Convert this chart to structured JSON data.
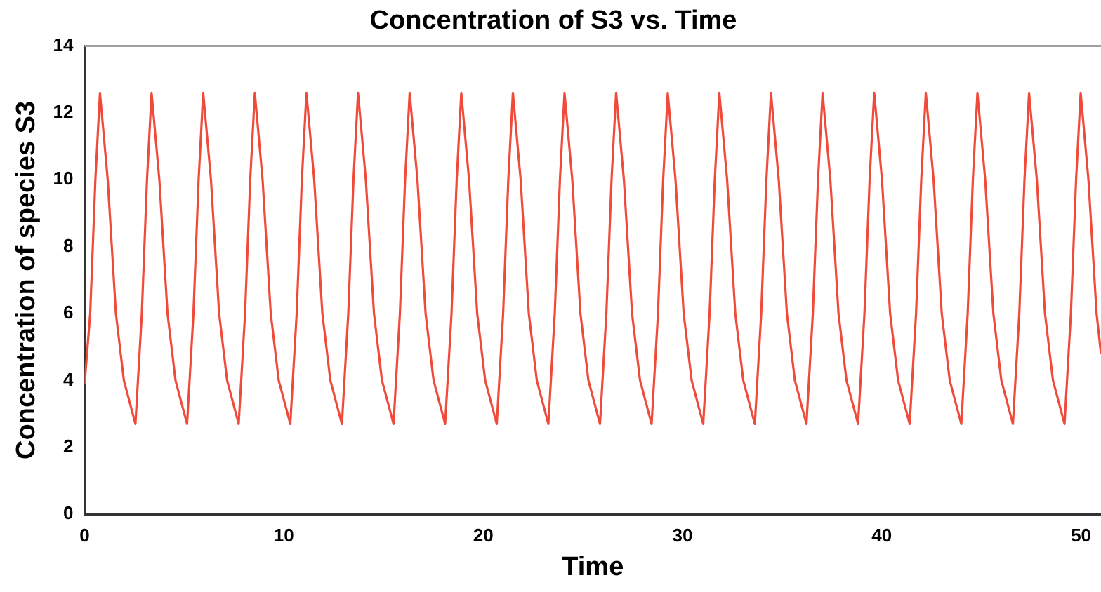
{
  "chart_data": {
    "type": "line",
    "title": "Concentration of S3 vs. Time",
    "xlabel": "Time",
    "ylabel": "Concentration of species S3",
    "x": [
      0,
      0.28,
      0.54,
      0.77,
      1.16,
      1.57,
      1.97,
      2.55,
      2.87,
      3.13,
      3.36,
      3.75,
      4.16,
      4.56,
      5.14,
      5.46,
      5.72,
      5.95,
      6.34,
      6.75,
      7.15,
      7.73,
      8.05,
      8.31,
      8.54,
      8.93,
      9.34,
      9.74,
      10.32,
      10.64,
      10.9,
      11.13,
      11.52,
      11.93,
      12.33,
      12.91,
      13.23,
      13.49,
      13.72,
      14.11,
      14.52,
      14.92,
      15.5,
      15.82,
      16.08,
      16.31,
      16.7,
      17.11,
      17.51,
      18.09,
      18.41,
      18.67,
      18.9,
      19.29,
      19.7,
      20.1,
      20.68,
      21,
      21.26,
      21.49,
      21.88,
      22.29,
      22.69,
      23.27,
      23.59,
      23.85,
      24.08,
      24.47,
      24.88,
      25.28,
      25.86,
      26.18,
      26.44,
      26.67,
      27.06,
      27.47,
      27.87,
      28.45,
      28.77,
      29.03,
      29.26,
      29.65,
      30.06,
      30.46,
      31.04,
      31.36,
      31.62,
      31.85,
      32.24,
      32.65,
      33.05,
      33.63,
      33.95,
      34.21,
      34.44,
      34.83,
      35.24,
      35.64,
      36.22,
      36.54,
      36.8,
      37.03,
      37.42,
      37.83,
      38.23,
      38.81,
      39.13,
      39.39,
      39.62,
      40.01,
      40.42,
      40.82,
      41.4,
      41.72,
      41.98,
      42.21,
      42.6,
      43.01,
      43.41,
      43.99,
      44.31,
      44.57,
      44.8,
      45.19,
      45.6,
      46,
      46.58,
      46.9,
      47.16,
      47.39,
      47.78,
      48.19,
      48.59,
      49.17,
      49.49,
      49.75,
      49.98,
      50.37,
      50.78,
      51
    ],
    "series": [
      {
        "color": "#f04a3a",
        "values": [
          3.9,
          6,
          10,
          12.6,
          10,
          6,
          4,
          2.7,
          6,
          10,
          12.6,
          10,
          6,
          4,
          2.7,
          6,
          10,
          12.6,
          10,
          6,
          4,
          2.7,
          6,
          10,
          12.6,
          10,
          6,
          4,
          2.7,
          6,
          10,
          12.6,
          10,
          6,
          4,
          2.7,
          6,
          10,
          12.6,
          10,
          6,
          4,
          2.7,
          6,
          10,
          12.6,
          10,
          6,
          4,
          2.7,
          6,
          10,
          12.6,
          10,
          6,
          4,
          2.7,
          6,
          10,
          12.6,
          10,
          6,
          4,
          2.7,
          6,
          10,
          12.6,
          10,
          6,
          4,
          2.7,
          6,
          10,
          12.6,
          10,
          6,
          4,
          2.7,
          6,
          10,
          12.6,
          10,
          6,
          4,
          2.7,
          6,
          10,
          12.6,
          10,
          6,
          4,
          2.7,
          6,
          10,
          12.6,
          10,
          6,
          4,
          2.7,
          6,
          10,
          12.6,
          10,
          6,
          4,
          2.7,
          6,
          10,
          12.6,
          10,
          6,
          4,
          2.7,
          6,
          10,
          12.6,
          10,
          6,
          4,
          2.7,
          6,
          10,
          12.6,
          10,
          6,
          4,
          2.7,
          6,
          10,
          12.6,
          10,
          6,
          4,
          2.7,
          6,
          10,
          12.6,
          10,
          6,
          4.8
        ]
      }
    ],
    "xlim": [
      0,
      51
    ],
    "xticks": [
      0,
      10,
      20,
      30,
      40,
      50
    ],
    "ylim": [
      0,
      14
    ],
    "yticks": [
      0,
      2,
      4,
      6,
      8,
      10,
      12,
      14
    ],
    "grid": false,
    "legend": false,
    "marker": "none",
    "line_style": "solid"
  }
}
